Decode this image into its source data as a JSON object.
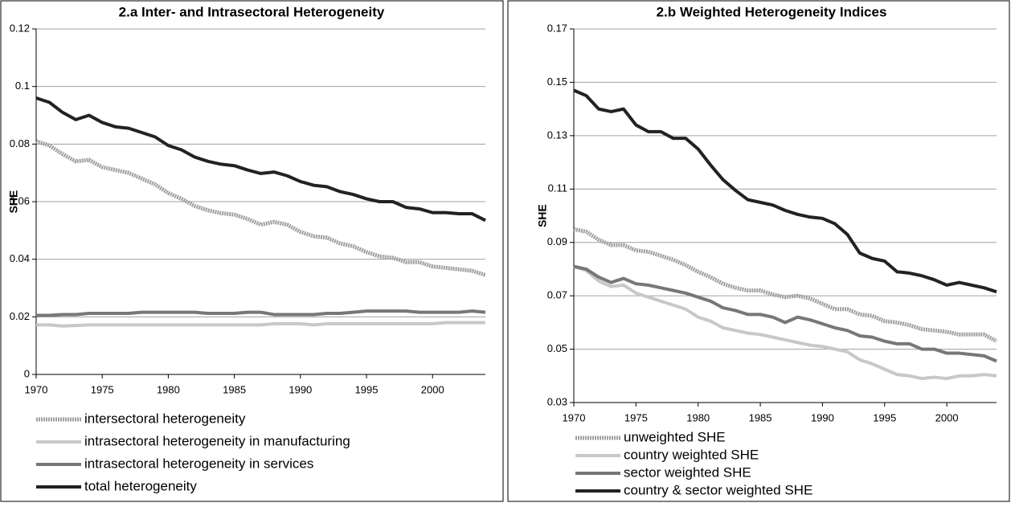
{
  "chart_data": [
    {
      "type": "line",
      "title": "2.a Inter- and Intrasectoral Heterogeneity",
      "y_label": "SHE",
      "x": [
        1970,
        1971,
        1972,
        1973,
        1974,
        1975,
        1976,
        1977,
        1978,
        1979,
        1980,
        1981,
        1982,
        1983,
        1984,
        1985,
        1986,
        1987,
        1988,
        1989,
        1990,
        1991,
        1992,
        1993,
        1994,
        1995,
        1996,
        1997,
        1998,
        1999,
        2000,
        2001,
        2002,
        2003,
        2004
      ],
      "xlim": [
        1970,
        2004
      ],
      "xticks": [
        1970,
        1975,
        1980,
        1985,
        1990,
        1995,
        2000
      ],
      "ylim": [
        0,
        0.12
      ],
      "yticks": [
        0,
        0.02,
        0.04,
        0.06,
        0.08,
        0.1,
        0.12
      ],
      "grid": true,
      "legend": "bottom",
      "series": [
        {
          "name": "intersectoral heterogeneity",
          "color": "#a0a0a0",
          "pattern": true,
          "values": [
            0.081,
            0.0795,
            0.0765,
            0.074,
            0.0745,
            0.072,
            0.071,
            0.07,
            0.068,
            0.066,
            0.063,
            0.061,
            0.0585,
            0.057,
            0.056,
            0.0555,
            0.054,
            0.052,
            0.053,
            0.052,
            0.0495,
            0.048,
            0.0475,
            0.0455,
            0.0445,
            0.0425,
            0.041,
            0.0405,
            0.039,
            0.039,
            0.0375,
            0.037,
            0.0365,
            0.036,
            0.0345
          ]
        },
        {
          "name": "intrasectoral heterogeneity in manufacturing",
          "color": "#c8c8c8",
          "values": [
            0.0172,
            0.0172,
            0.0168,
            0.017,
            0.0172,
            0.0172,
            0.0172,
            0.0172,
            0.0172,
            0.0172,
            0.0172,
            0.0172,
            0.0172,
            0.0172,
            0.0172,
            0.0172,
            0.0172,
            0.0172,
            0.0176,
            0.0176,
            0.0176,
            0.0172,
            0.0176,
            0.0176,
            0.0176,
            0.0176,
            0.0176,
            0.0176,
            0.0176,
            0.0176,
            0.0176,
            0.018,
            0.018,
            0.018,
            0.018
          ]
        },
        {
          "name": "intrasectoral heterogeneity in services",
          "color": "#777777",
          "values": [
            0.0205,
            0.0205,
            0.0208,
            0.0208,
            0.0212,
            0.0212,
            0.0212,
            0.0212,
            0.0216,
            0.0216,
            0.0216,
            0.0216,
            0.0216,
            0.0212,
            0.0212,
            0.0212,
            0.0216,
            0.0216,
            0.0208,
            0.0208,
            0.0208,
            0.0208,
            0.0212,
            0.0212,
            0.0216,
            0.022,
            0.022,
            0.022,
            0.022,
            0.0216,
            0.0216,
            0.0216,
            0.0216,
            0.022,
            0.0216
          ]
        },
        {
          "name": "total heterogeneity",
          "color": "#222222",
          "values": [
            0.096,
            0.0945,
            0.091,
            0.0885,
            0.09,
            0.0875,
            0.086,
            0.0855,
            0.084,
            0.0825,
            0.0795,
            0.078,
            0.0755,
            0.074,
            0.073,
            0.0725,
            0.071,
            0.0698,
            0.0703,
            0.069,
            0.067,
            0.0657,
            0.0652,
            0.0635,
            0.0625,
            0.061,
            0.06,
            0.06,
            0.058,
            0.0575,
            0.0562,
            0.0562,
            0.0558,
            0.0558,
            0.0535
          ]
        }
      ]
    },
    {
      "type": "line",
      "title": "2.b Weighted Heterogeneity Indices",
      "y_label": "SHE",
      "x": [
        1970,
        1971,
        1972,
        1973,
        1974,
        1975,
        1976,
        1977,
        1978,
        1979,
        1980,
        1981,
        1982,
        1983,
        1984,
        1985,
        1986,
        1987,
        1988,
        1989,
        1990,
        1991,
        1992,
        1993,
        1994,
        1995,
        1996,
        1997,
        1998,
        1999,
        2000,
        2001,
        2002,
        2003,
        2004
      ],
      "xlim": [
        1970,
        2004
      ],
      "xticks": [
        1970,
        1975,
        1980,
        1985,
        1990,
        1995,
        2000
      ],
      "ylim": [
        0.03,
        0.17
      ],
      "yticks": [
        0.03,
        0.05,
        0.07,
        0.09,
        0.11,
        0.13,
        0.15,
        0.17
      ],
      "grid": true,
      "legend": "bottom",
      "series": [
        {
          "name": "unweighted SHE",
          "color": "#a0a0a0",
          "pattern": true,
          "values": [
            0.095,
            0.094,
            0.091,
            0.089,
            0.089,
            0.087,
            0.0865,
            0.085,
            0.0835,
            0.0815,
            0.079,
            0.077,
            0.0745,
            0.073,
            0.072,
            0.072,
            0.0705,
            0.0695,
            0.07,
            0.069,
            0.067,
            0.065,
            0.065,
            0.063,
            0.0625,
            0.0605,
            0.06,
            0.059,
            0.0575,
            0.057,
            0.0565,
            0.0555,
            0.0555,
            0.0555,
            0.053
          ]
        },
        {
          "name": "country weighted SHE",
          "color": "#c8c8c8",
          "values": [
            0.081,
            0.0795,
            0.0755,
            0.0735,
            0.074,
            0.071,
            0.0695,
            0.068,
            0.0665,
            0.065,
            0.062,
            0.0605,
            0.058,
            0.057,
            0.056,
            0.0555,
            0.0545,
            0.0535,
            0.0525,
            0.0515,
            0.051,
            0.05,
            0.049,
            0.046,
            0.0445,
            0.0425,
            0.0405,
            0.04,
            0.039,
            0.0395,
            0.039,
            0.04,
            0.04,
            0.0405,
            0.04
          ]
        },
        {
          "name": "sector weighted SHE",
          "color": "#777777",
          "values": [
            0.081,
            0.08,
            0.077,
            0.075,
            0.0765,
            0.0745,
            0.074,
            0.073,
            0.072,
            0.071,
            0.0695,
            0.068,
            0.0655,
            0.0645,
            0.063,
            0.063,
            0.062,
            0.06,
            0.062,
            0.061,
            0.0595,
            0.058,
            0.057,
            0.055,
            0.0545,
            0.053,
            0.052,
            0.052,
            0.05,
            0.05,
            0.0485,
            0.0485,
            0.048,
            0.0475,
            0.0455
          ]
        },
        {
          "name": "country & sector weighted SHE",
          "color": "#222222",
          "values": [
            0.147,
            0.145,
            0.14,
            0.139,
            0.14,
            0.134,
            0.1315,
            0.1315,
            0.129,
            0.129,
            0.125,
            0.119,
            0.1135,
            0.1095,
            0.106,
            0.105,
            0.104,
            0.102,
            0.1005,
            0.0995,
            0.099,
            0.097,
            0.093,
            0.086,
            0.084,
            0.083,
            0.079,
            0.0785,
            0.0775,
            0.076,
            0.074,
            0.075,
            0.074,
            0.073,
            0.0715
          ]
        }
      ]
    }
  ]
}
